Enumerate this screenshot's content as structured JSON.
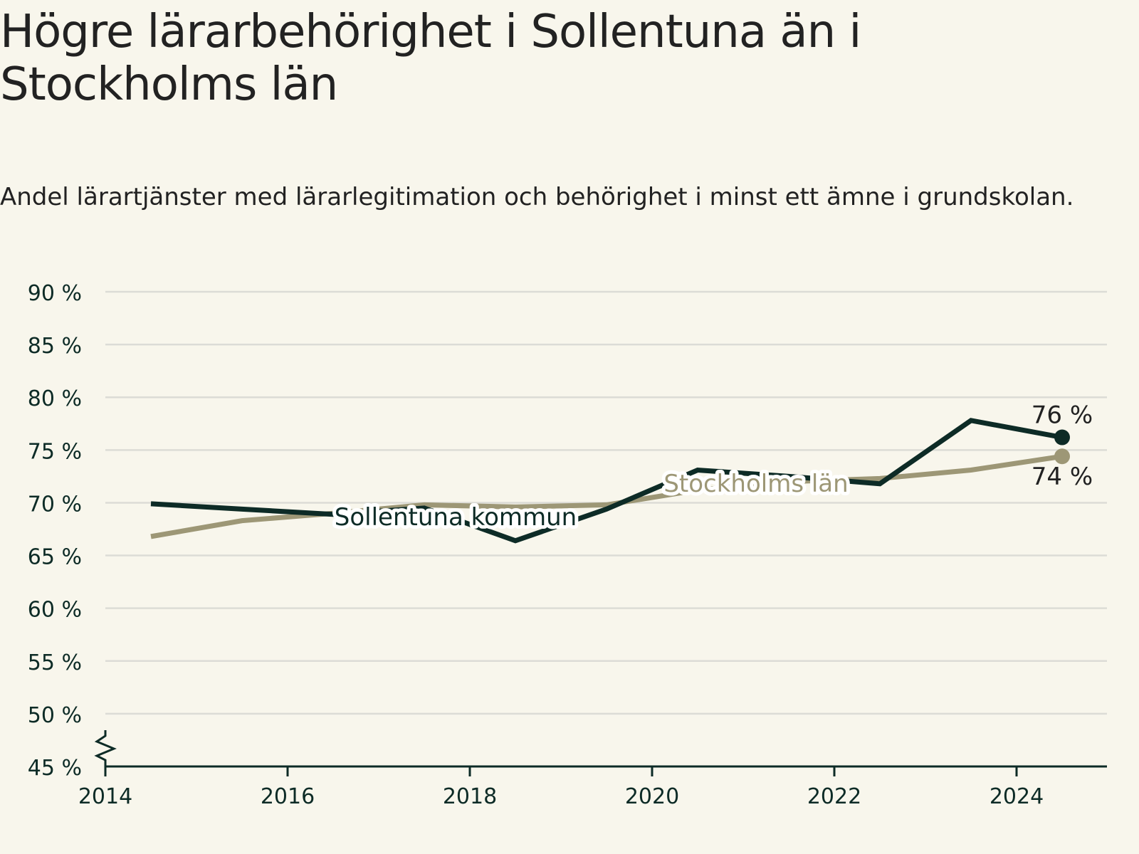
{
  "title": "Högre lärarbehörighet i Sollentuna än i Stockholms län",
  "subtitle": "Andel lärartjänster med lärarlegitimation och behörighet i minst ett ämne i grundskolan.",
  "colors": {
    "background": "#f8f6ec",
    "sollentuna": "#0d2b26",
    "stockholm": "#9d9776",
    "grid": "#dcdcd6",
    "axis": "#0d2b26",
    "tick_text": "#0d2b26"
  },
  "chart_data": {
    "type": "line",
    "x_tick_labels": [
      "2014",
      "2016",
      "2018",
      "2020",
      "2022",
      "2024"
    ],
    "y_tick_labels": [
      "45 %",
      "50 %",
      "55 %",
      "60 %",
      "65 %",
      "70 %",
      "75 %",
      "80 %",
      "85 %",
      "90 %"
    ],
    "ylim": [
      45,
      90
    ],
    "y_axis_break": true,
    "grid": true,
    "legend": "inline labels",
    "series": [
      {
        "name": "Sollentuna kommun",
        "color": "#0d2b26",
        "x": [
          "2014/15",
          "2015/16",
          "2016/17",
          "2017/18",
          "2018/19",
          "2019/20",
          "2020/21",
          "2021/22",
          "2022/23",
          "2023/24",
          "2024/25"
        ],
        "values": [
          69.9,
          69.4,
          68.9,
          69.5,
          66.4,
          69.4,
          73.1,
          72.5,
          71.8,
          77.8,
          76.2
        ],
        "end_label": "76 %"
      },
      {
        "name": "Stockholms län",
        "color": "#9d9776",
        "x": [
          "2014/15",
          "2015/16",
          "2016/17",
          "2017/18",
          "2018/19",
          "2019/20",
          "2020/21",
          "2021/22",
          "2022/23",
          "2023/24",
          "2024/25"
        ],
        "values": [
          66.8,
          68.3,
          69.0,
          69.8,
          69.6,
          69.8,
          71.2,
          72.0,
          72.3,
          73.1,
          74.4
        ],
        "end_label": "74 %"
      }
    ]
  }
}
